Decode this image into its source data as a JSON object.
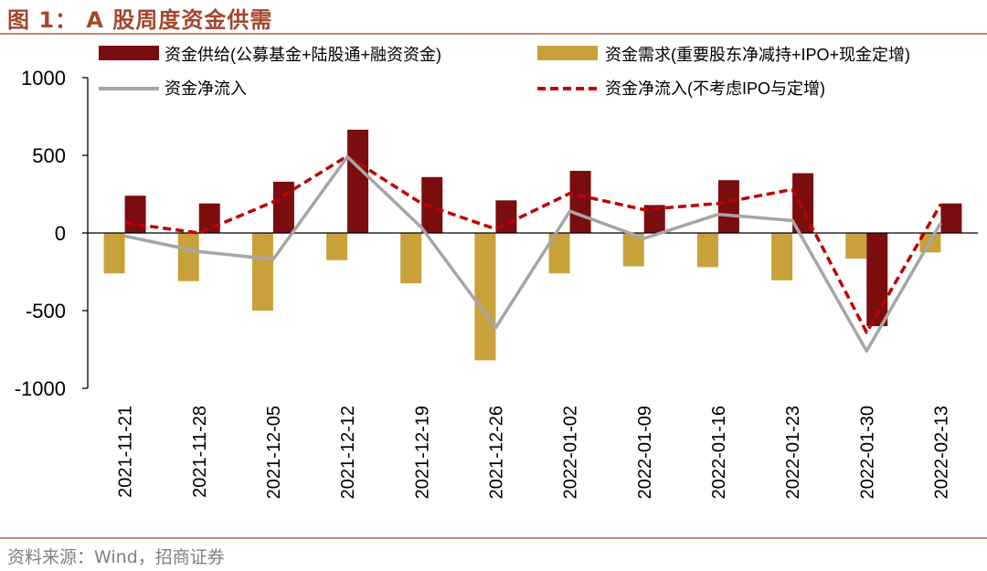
{
  "figure": {
    "title": "图 1：  A 股周度资金供需",
    "source": "资料来源：Wind，招商证券"
  },
  "colors": {
    "supply": "#7B0D0F",
    "demand": "#C8A13A",
    "net": "#A6A6A6",
    "net_ex": "#C00000",
    "title": "#A2472D",
    "rule": "#C48A74"
  },
  "chart_data": {
    "type": "bar",
    "title": "A 股周度资金供需",
    "categories": [
      "2021-11-21",
      "2021-11-28",
      "2021-12-05",
      "2021-12-12",
      "2021-12-19",
      "2021-12-26",
      "2022-01-02",
      "2022-01-09",
      "2022-01-16",
      "2022-01-23",
      "2022-01-30",
      "2022-02-13"
    ],
    "series": [
      {
        "name": "资金供给(公募基金+陆股通+融资资金)",
        "type": "bar",
        "values": [
          240,
          190,
          330,
          665,
          360,
          210,
          400,
          180,
          340,
          385,
          -600,
          190
        ]
      },
      {
        "name": "资金需求(重要股东净减持+IPO+现金定增)",
        "type": "bar",
        "values": [
          -260,
          -310,
          -500,
          -175,
          -325,
          -820,
          -260,
          -215,
          -220,
          -305,
          -165,
          -125
        ]
      },
      {
        "name": "资金净流入",
        "type": "line",
        "style": "solid",
        "values": [
          -20,
          -120,
          -170,
          490,
          35,
          -610,
          140,
          -35,
          120,
          80,
          -760,
          65
        ]
      },
      {
        "name": "资金净流入(不考虑IPO与定增)",
        "type": "line",
        "style": "dashed",
        "values": [
          65,
          0,
          200,
          495,
          190,
          25,
          255,
          150,
          190,
          280,
          -640,
          185
        ]
      }
    ],
    "yticks": [
      "1000",
      "500",
      "0",
      "-500",
      "-1000"
    ],
    "ylim": [
      -1000,
      1000
    ],
    "legend_position": "top",
    "grid": false
  }
}
